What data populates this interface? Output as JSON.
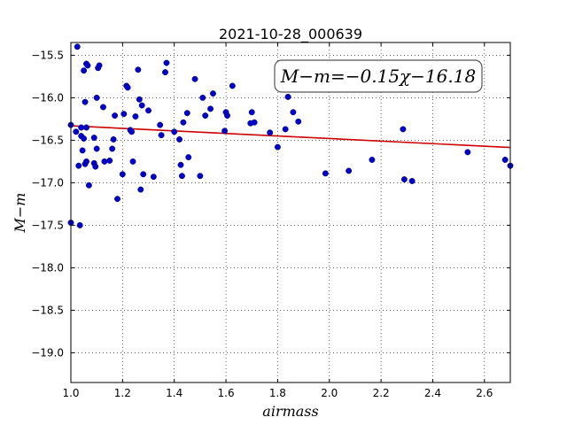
{
  "chart_data": {
    "type": "scatter",
    "title": "2021-10-28_000639",
    "xlabel": "airmass",
    "ylabel": "M−m",
    "xlim": [
      1.0,
      2.7
    ],
    "ylim": [
      -19.35,
      -15.35
    ],
    "y_inverted": true,
    "grid": true,
    "x_ticks": [
      "1.0",
      "1.2",
      "1.4",
      "1.6",
      "1.8",
      "2.0",
      "2.2",
      "2.4",
      "2.6"
    ],
    "y_ticks": [
      "−15.5",
      "−16.0",
      "−16.5",
      "−17.0",
      "−17.5",
      "−18.0",
      "−18.5",
      "−19.0"
    ],
    "annotation": "M−m=−0.15χ−16.18",
    "point_color": "#0000cc",
    "fit_color": "#cc0000",
    "fit": {
      "slope": -0.15,
      "intercept": -16.18
    },
    "points": [
      [
        1.0,
        -16.32
      ],
      [
        1.0,
        -17.47
      ],
      [
        1.02,
        -16.4
      ],
      [
        1.025,
        -15.4
      ],
      [
        1.03,
        -16.8
      ],
      [
        1.035,
        -17.5
      ],
      [
        1.04,
        -16.35
      ],
      [
        1.04,
        -16.45
      ],
      [
        1.045,
        -16.62
      ],
      [
        1.05,
        -15.68
      ],
      [
        1.05,
        -16.48
      ],
      [
        1.055,
        -16.05
      ],
      [
        1.055,
        -16.78
      ],
      [
        1.06,
        -16.35
      ],
      [
        1.06,
        -16.75
      ],
      [
        1.06,
        -15.6
      ],
      [
        1.065,
        -15.62
      ],
      [
        1.07,
        -17.03
      ],
      [
        1.09,
        -16.47
      ],
      [
        1.09,
        -16.77
      ],
      [
        1.095,
        -16.81
      ],
      [
        1.1,
        -16.0
      ],
      [
        1.1,
        -16.6
      ],
      [
        1.105,
        -15.65
      ],
      [
        1.11,
        -15.62
      ],
      [
        1.125,
        -16.11
      ],
      [
        1.13,
        -16.75
      ],
      [
        1.15,
        -16.74
      ],
      [
        1.16,
        -16.6
      ],
      [
        1.165,
        -16.49
      ],
      [
        1.17,
        -16.21
      ],
      [
        1.18,
        -17.19
      ],
      [
        1.2,
        -16.9
      ],
      [
        1.205,
        -16.19
      ],
      [
        1.215,
        -15.86
      ],
      [
        1.22,
        -15.88
      ],
      [
        1.23,
        -16.38
      ],
      [
        1.235,
        -16.4
      ],
      [
        1.24,
        -16.75
      ],
      [
        1.25,
        -16.22
      ],
      [
        1.26,
        -15.67
      ],
      [
        1.265,
        -16.02
      ],
      [
        1.27,
        -17.08
      ],
      [
        1.275,
        -16.09
      ],
      [
        1.28,
        -16.9
      ],
      [
        1.3,
        -16.15
      ],
      [
        1.32,
        -16.93
      ],
      [
        1.345,
        -16.32
      ],
      [
        1.35,
        -16.44
      ],
      [
        1.365,
        -15.7
      ],
      [
        1.37,
        -15.59
      ],
      [
        1.4,
        -16.4
      ],
      [
        1.42,
        -16.49
      ],
      [
        1.425,
        -16.79
      ],
      [
        1.43,
        -16.92
      ],
      [
        1.435,
        -16.29
      ],
      [
        1.45,
        -16.18
      ],
      [
        1.455,
        -16.7
      ],
      [
        1.48,
        -15.78
      ],
      [
        1.5,
        -16.92
      ],
      [
        1.51,
        -16.0
      ],
      [
        1.52,
        -16.21
      ],
      [
        1.54,
        -16.13
      ],
      [
        1.55,
        -15.95
      ],
      [
        1.595,
        -16.39
      ],
      [
        1.6,
        -16.17
      ],
      [
        1.605,
        -16.21
      ],
      [
        1.625,
        -15.86
      ],
      [
        1.695,
        -16.3
      ],
      [
        1.7,
        -16.17
      ],
      [
        1.71,
        -16.29
      ],
      [
        1.77,
        -16.41
      ],
      [
        1.8,
        -16.58
      ],
      [
        1.83,
        -16.37
      ],
      [
        1.84,
        -15.99
      ],
      [
        1.86,
        -16.17
      ],
      [
        1.88,
        -16.28
      ],
      [
        1.985,
        -16.89
      ],
      [
        2.075,
        -16.86
      ],
      [
        2.165,
        -16.73
      ],
      [
        2.285,
        -16.37
      ],
      [
        2.29,
        -16.96
      ],
      [
        2.32,
        -16.98
      ],
      [
        2.535,
        -16.64
      ],
      [
        2.68,
        -16.73
      ],
      [
        2.7,
        -16.8
      ]
    ]
  }
}
